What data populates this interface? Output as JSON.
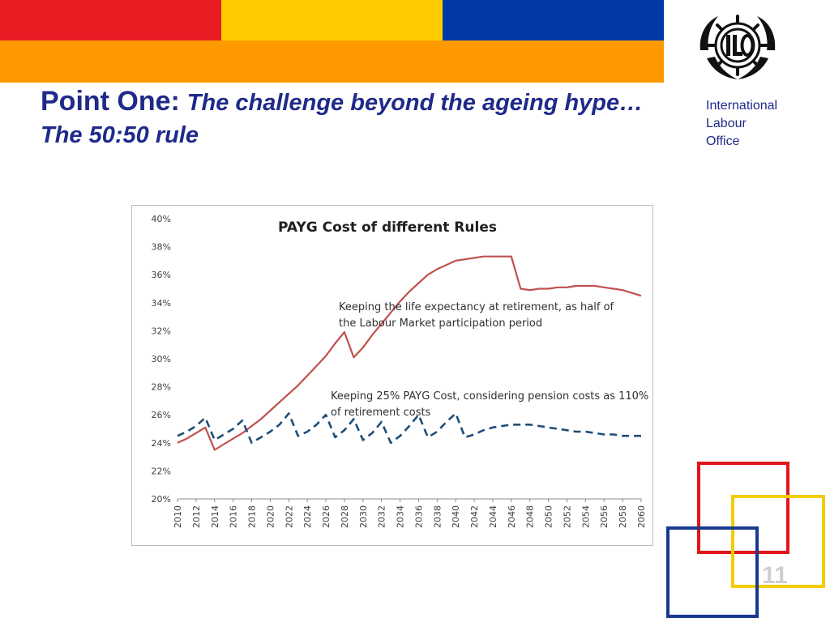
{
  "header": {
    "colors": [
      "#e81c23",
      "#ffcc00",
      "#0039a6",
      "#ff9900"
    ],
    "title_lead": "Point One:",
    "title_rest": "The challenge beyond the ageing hype… The 50:50 rule",
    "logo_icon": "ilo-logo-icon",
    "org_line1": "International",
    "org_line2": "Labour",
    "org_line3": "Office"
  },
  "slide": {
    "page_number": "11",
    "square_colors": [
      "#e0161a",
      "#f4cc00",
      "#1a3a8f"
    ]
  },
  "chart_data": {
    "type": "line",
    "title": "PAYG Cost of different Rules",
    "xlabel": "",
    "ylabel": "",
    "ylim": [
      0.2,
      0.4
    ],
    "xlim": [
      2010,
      2060
    ],
    "y_ticks": [
      "20%",
      "22%",
      "24%",
      "26%",
      "28%",
      "30%",
      "32%",
      "34%",
      "36%",
      "38%",
      "40%"
    ],
    "x_ticks": [
      "2010",
      "2012",
      "2014",
      "2016",
      "2018",
      "2020",
      "2022",
      "2024",
      "2026",
      "2028",
      "2030",
      "2032",
      "2034",
      "2036",
      "2038",
      "2040",
      "2042",
      "2044",
      "2046",
      "2048",
      "2050",
      "2052",
      "2054",
      "2056",
      "2058",
      "2060"
    ],
    "grid": false,
    "series": [
      {
        "style": "solid",
        "color": "#c0504d",
        "points": [
          [
            2010,
            0.24
          ],
          [
            2011,
            0.243
          ],
          [
            2012,
            0.247
          ],
          [
            2013,
            0.251
          ],
          [
            2014,
            0.235
          ],
          [
            2015,
            0.239
          ],
          [
            2016,
            0.243
          ],
          [
            2017,
            0.247
          ],
          [
            2018,
            0.252
          ],
          [
            2019,
            0.257
          ],
          [
            2020,
            0.263
          ],
          [
            2021,
            0.269
          ],
          [
            2022,
            0.275
          ],
          [
            2023,
            0.281
          ],
          [
            2024,
            0.288
          ],
          [
            2025,
            0.295
          ],
          [
            2026,
            0.302
          ],
          [
            2027,
            0.311
          ],
          [
            2028,
            0.319
          ],
          [
            2029,
            0.301
          ],
          [
            2030,
            0.308
          ],
          [
            2031,
            0.317
          ],
          [
            2032,
            0.325
          ],
          [
            2033,
            0.333
          ],
          [
            2034,
            0.341
          ],
          [
            2035,
            0.348
          ],
          [
            2036,
            0.354
          ],
          [
            2037,
            0.36
          ],
          [
            2038,
            0.364
          ],
          [
            2039,
            0.367
          ],
          [
            2040,
            0.37
          ],
          [
            2041,
            0.371
          ],
          [
            2042,
            0.372
          ],
          [
            2043,
            0.373
          ],
          [
            2044,
            0.373
          ],
          [
            2045,
            0.373
          ],
          [
            2046,
            0.373
          ],
          [
            2047,
            0.35
          ],
          [
            2048,
            0.349
          ],
          [
            2049,
            0.35
          ],
          [
            2050,
            0.35
          ],
          [
            2051,
            0.351
          ],
          [
            2052,
            0.351
          ],
          [
            2053,
            0.352
          ],
          [
            2054,
            0.352
          ],
          [
            2055,
            0.352
          ],
          [
            2056,
            0.351
          ],
          [
            2057,
            0.35
          ],
          [
            2058,
            0.349
          ],
          [
            2059,
            0.347
          ],
          [
            2060,
            0.345
          ]
        ]
      },
      {
        "style": "dashed",
        "color": "#1f4e79",
        "points": [
          [
            2010,
            0.245
          ],
          [
            2011,
            0.248
          ],
          [
            2012,
            0.252
          ],
          [
            2013,
            0.258
          ],
          [
            2014,
            0.242
          ],
          [
            2015,
            0.246
          ],
          [
            2016,
            0.25
          ],
          [
            2017,
            0.256
          ],
          [
            2018,
            0.24
          ],
          [
            2019,
            0.244
          ],
          [
            2020,
            0.248
          ],
          [
            2021,
            0.253
          ],
          [
            2022,
            0.261
          ],
          [
            2023,
            0.245
          ],
          [
            2024,
            0.248
          ],
          [
            2025,
            0.253
          ],
          [
            2026,
            0.26
          ],
          [
            2027,
            0.244
          ],
          [
            2028,
            0.249
          ],
          [
            2029,
            0.257
          ],
          [
            2030,
            0.242
          ],
          [
            2031,
            0.247
          ],
          [
            2032,
            0.255
          ],
          [
            2033,
            0.24
          ],
          [
            2034,
            0.245
          ],
          [
            2035,
            0.252
          ],
          [
            2036,
            0.26
          ],
          [
            2037,
            0.244
          ],
          [
            2038,
            0.248
          ],
          [
            2039,
            0.255
          ],
          [
            2040,
            0.261
          ],
          [
            2041,
            0.244
          ],
          [
            2042,
            0.246
          ],
          [
            2043,
            0.249
          ],
          [
            2044,
            0.251
          ],
          [
            2045,
            0.252
          ],
          [
            2046,
            0.253
          ],
          [
            2047,
            0.253
          ],
          [
            2048,
            0.253
          ],
          [
            2049,
            0.252
          ],
          [
            2050,
            0.251
          ],
          [
            2051,
            0.25
          ],
          [
            2052,
            0.249
          ],
          [
            2053,
            0.248
          ],
          [
            2054,
            0.248
          ],
          [
            2055,
            0.247
          ],
          [
            2056,
            0.246
          ],
          [
            2057,
            0.246
          ],
          [
            2058,
            0.245
          ],
          [
            2059,
            0.245
          ],
          [
            2060,
            0.245
          ]
        ]
      }
    ],
    "annotations": [
      {
        "line1": "Keeping the life expectancy at retirement, as half of",
        "line2": "the Labour Market participation period"
      },
      {
        "line1": "Keeping 25% PAYG Cost, considering pension costs as 110%",
        "line2": "of retirement costs"
      }
    ]
  }
}
